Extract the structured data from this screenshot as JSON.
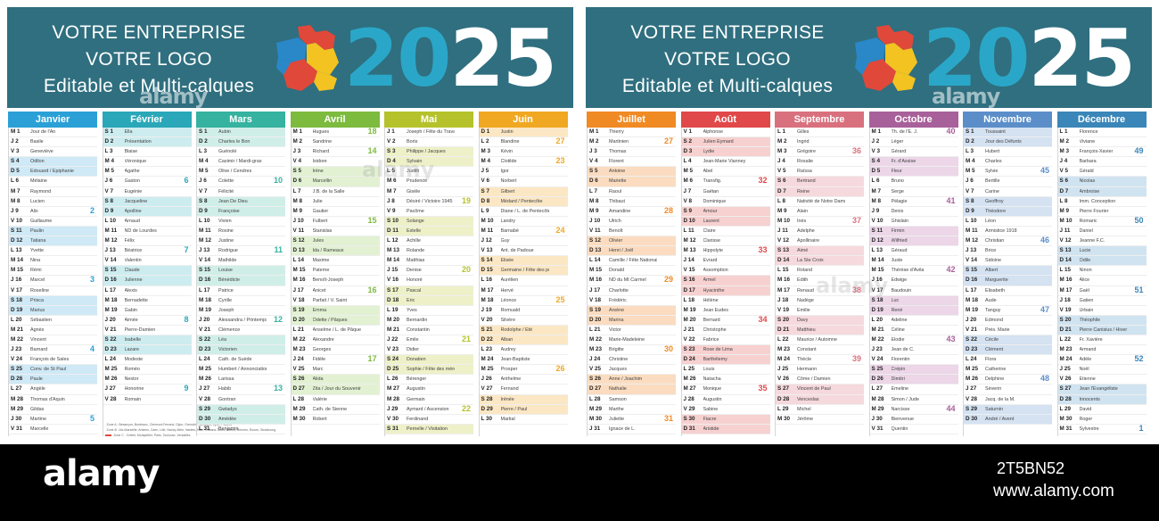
{
  "banner": {
    "line1": "VOTRE ENTREPRISE",
    "line2": "VOTRE LOGO",
    "line3": "Editable et Multi-calques",
    "year_part1": "20",
    "year_part2": "25"
  },
  "colors": {
    "banner_bg": "#2f6f7f",
    "year_accent": "#2aa7c8",
    "weekend_tint_saturday": "#dfeef2",
    "weekend_tint_sunday": "#c9e4ec"
  },
  "months": [
    {
      "name": "Janvier",
      "color": "#2aa0d6",
      "light": "#cfe9f6",
      "first": 2,
      "days": 31,
      "saints": [
        "Jour de l'An",
        "Basile",
        "Geneviève",
        "Odilon",
        "Edouard / Epiphanie",
        "Mélaine",
        "Raymond",
        "Lucien",
        "Alix",
        "Guillaume",
        "Paulin",
        "Tatiana",
        "Yvette",
        "Nina",
        "Rémi",
        "Marcel",
        "Roseline",
        "Prisca",
        "Marius",
        "Sébastien",
        "Agnès",
        "Vincent",
        "Barnard",
        "François de Sales",
        "Conv. de St Paul",
        "Paule",
        "Angèle",
        "Thomas d'Aquin",
        "Gildas",
        "Martine",
        "Marcelle"
      ],
      "weeks": {
        "9": "2",
        "16": "3",
        "23": "4",
        "30": "5"
      }
    },
    {
      "name": "Février",
      "color": "#2aa7b8",
      "light": "#cdecef",
      "first": 5,
      "days": 28,
      "saints": [
        "Ella",
        "Présentation",
        "Blaise",
        "Véronique",
        "Agathe",
        "Gaston",
        "Eugénie",
        "Jacqueline",
        "Apolline",
        "Arnaud",
        "ND de Lourdes",
        "Félix",
        "Béatrice",
        "Valentin",
        "Claude",
        "Julienne",
        "Alexis",
        "Bernadette",
        "Gabin",
        "Aimée",
        "Pierre-Damien",
        "Isabelle",
        "Lazare",
        "Modeste",
        "Roméo",
        "Nestor",
        "Honorine",
        "Romain"
      ],
      "weeks": {
        "6": "6",
        "13": "7",
        "20": "8",
        "27": "9"
      }
    },
    {
      "name": "Mars",
      "color": "#35b2a0",
      "light": "#d0eee8",
      "first": 5,
      "days": 31,
      "saints": [
        "Aubin",
        "Charles le Bon",
        "Guénolé",
        "Casimir / Mardi-gras",
        "Olive / Cendres",
        "Colette",
        "Félicité",
        "Jean De Dieu",
        "Françoise",
        "Vivien",
        "Rosine",
        "Justine",
        "Rodrigue",
        "Mathilde",
        "Louise",
        "Bénédicte",
        "Patrice",
        "Cyrille",
        "Joseph",
        "Alessandra / Printemps",
        "Clémence",
        "Léa",
        "Victorien",
        "Cath. de Suède",
        "Humbert / Annonciation",
        "Larissa",
        "Habib",
        "Gontran",
        "Gwladys",
        "Amédée",
        "Benjamin"
      ],
      "weeks": {
        "6": "10",
        "13": "11",
        "20": "12",
        "27": "13"
      }
    },
    {
      "name": "Avril",
      "color": "#7cbb3e",
      "light": "#e2f1d2",
      "first": 1,
      "days": 30,
      "saints": [
        "Hugues",
        "Sandrine",
        "Richard",
        "Isidore",
        "Irène",
        "Marcellin",
        "J.B. de la Salle",
        "Julie",
        "Gautier",
        "Fulbert",
        "Stanislas",
        "Jules",
        "Ida / Rameaux",
        "Maxime",
        "Paterne",
        "Benoît-Joseph",
        "Anicet",
        "Parfait / V. Saint",
        "Emma",
        "Odette / Pâques",
        "Anselme / L. de Pâques",
        "Alexandre",
        "Georges",
        "Fidèle",
        "Marc",
        "Alida",
        "Zita / Jour du Souvenir",
        "Valérie",
        "Cath. de Sienne",
        "Robert"
      ],
      "weeks": {
        "3": "14",
        "10": "15",
        "17": "16",
        "24": "17",
        "1": "18"
      }
    },
    {
      "name": "Mai",
      "color": "#b5c22b",
      "light": "#eef1c8",
      "first": 3,
      "days": 31,
      "saints": [
        "Joseph / Fête du Travail",
        "Boris",
        "Philippe / Jacques",
        "Sylvain",
        "Judith",
        "Prudence",
        "Gisèle",
        "Désiré / Victoire 1945",
        "Pacôme",
        "Solange",
        "Estelle",
        "Achille",
        "Rolande",
        "Matthias",
        "Denise",
        "Honoré",
        "Pascal",
        "Eric",
        "Yves",
        "Bernardin",
        "Constantin",
        "Emile",
        "Didier",
        "Donatien",
        "Sophie / Fête des mères",
        "Bérenger",
        "Augustin",
        "Germain",
        "Aymard / Ascension",
        "Ferdinand",
        "Pernelle / Visitation"
      ],
      "weeks": {
        "8": "19",
        "15": "20",
        "22": "21",
        "29": "22"
      }
    },
    {
      "name": "Juin",
      "color": "#f0a822",
      "light": "#fbe7c4",
      "first": 6,
      "days": 30,
      "saints": [
        "Justin",
        "Blandine",
        "Kévin",
        "Clotilde",
        "Igor",
        "Norbert",
        "Gilbert",
        "Médard / Pentecôte",
        "Diane / L. de Pentecôte",
        "Landry",
        "Barnabé",
        "Guy",
        "Ant. de Padoue",
        "Elisée",
        "Germaine / Fête des pères",
        "Aurélien",
        "Hervé",
        "Léonce",
        "Romuald",
        "Silvère",
        "Rodolphe / Eté",
        "Alban",
        "Audrey",
        "Jean-Baptiste",
        "Prosper",
        "Anthelme",
        "Fernand",
        "Irénée",
        "Pierre / Paul",
        "Martial"
      ],
      "weeks": {
        "4": "23",
        "11": "24",
        "18": "25",
        "25": "26",
        "2": "27"
      }
    },
    {
      "name": "Juillet",
      "color": "#f08a24",
      "light": "#fbdcc0",
      "first": 1,
      "days": 31,
      "saints": [
        "Thierry",
        "Martinien",
        "Thomas",
        "Florent",
        "Antoine",
        "Mariette",
        "Raoul",
        "Thibaut",
        "Amandine",
        "Ulrich",
        "Benoît",
        "Olivier",
        "Henri / Joël",
        "Camille / Fête Nationale",
        "Donald",
        "ND du Mt Carmel",
        "Charlotte",
        "Frédéric",
        "Arsène",
        "Marina",
        "Victor",
        "Marie-Madeleine",
        "Brigitte",
        "Christine",
        "Jacques",
        "Anne / Joachim",
        "Nathalie",
        "Samson",
        "Marthe",
        "Juliette",
        "Ignace de L."
      ],
      "weeks": {
        "2": "27",
        "9": "28",
        "16": "29",
        "23": "30",
        "30": "31"
      }
    },
    {
      "name": "Août",
      "color": "#e0484a",
      "light": "#f7d0d0",
      "first": 4,
      "days": 31,
      "saints": [
        "Alphonse",
        "Julien Eymard",
        "Lydie",
        "Jean-Marie Vianney",
        "Abel",
        "Transfig.",
        "Gaétan",
        "Dominique",
        "Amour",
        "Laurent",
        "Claire",
        "Clarisse",
        "Hippolyte",
        "Evrard",
        "Assomption",
        "Armel",
        "Hyacinthe",
        "Hélène",
        "Jean Eudes",
        "Bernard",
        "Christophe",
        "Fabrice",
        "Rose de Lima",
        "Barthélemy",
        "Louis",
        "Natacha",
        "Monique",
        "Augustin",
        "Sabine",
        "Fiacre",
        "Aristide"
      ],
      "weeks": {
        "6": "32",
        "13": "33",
        "20": "34",
        "27": "35"
      }
    },
    {
      "name": "Septembre",
      "color": "#d8707e",
      "light": "#f6d9dd",
      "first": 0,
      "days": 30,
      "saints": [
        "Gilles",
        "Ingrid",
        "Grégoire",
        "Rosalie",
        "Raïssa",
        "Bertrand",
        "Reine",
        "Nativité de Notre Dame",
        "Alain",
        "Inès",
        "Adelphe",
        "Apollinaire",
        "Aimé",
        "La Ste Croix",
        "Roland",
        "Edith",
        "Renaud",
        "Nadège",
        "Emilie",
        "Davy",
        "Matthieu",
        "Maurice / Automne",
        "Constant",
        "Thècle",
        "Hermann",
        "Côme / Damien",
        "Vincent de Paul",
        "Venceslas",
        "Michel",
        "Jérôme"
      ],
      "weeks": {
        "3": "36",
        "10": "37",
        "17": "38",
        "24": "39"
      }
    },
    {
      "name": "Octobre",
      "color": "#a8609a",
      "light": "#ecd6e8",
      "first": 2,
      "days": 31,
      "saints": [
        "Th. de l'E. J.",
        "Léger",
        "Gérard",
        "Fr. d'Assise",
        "Fleur",
        "Bruno",
        "Serge",
        "Pélagie",
        "Denis",
        "Ghislain",
        "Firmin",
        "Wilfried",
        "Géraud",
        "Juste",
        "Thérèse d'Avila",
        "Edwige",
        "Baudouin",
        "Luc",
        "René",
        "Adeline",
        "Céline",
        "Elodie",
        "Jean de C.",
        "Florentin",
        "Crépin",
        "Dimitri",
        "Emeline",
        "Simon / Jude",
        "Narcisse",
        "Bienvenue",
        "Quentin"
      ],
      "weeks": {
        "1": "40",
        "8": "41",
        "15": "42",
        "22": "43",
        "29": "44"
      }
    },
    {
      "name": "Novembre",
      "color": "#5b8ec9",
      "light": "#d4e2f2",
      "first": 5,
      "days": 30,
      "saints": [
        "Toussaint",
        "Jour des Défunts",
        "Hubert",
        "Charles",
        "Sylvie",
        "Bertille",
        "Carine",
        "Geoffroy",
        "Théodore",
        "Léon",
        "Armistice 1918",
        "Christian",
        "Brice",
        "Sidoine",
        "Albert",
        "Marguerite",
        "Elisabeth",
        "Aude",
        "Tanguy",
        "Edmond",
        "Prés. Marie",
        "Cécile",
        "Clément",
        "Flora",
        "Catherine",
        "Delphine",
        "Séverin",
        "Jacq. de la M.",
        "Saturnin",
        "André / Avent"
      ],
      "weeks": {
        "5": "45",
        "12": "46",
        "19": "47",
        "26": "48"
      }
    },
    {
      "name": "Décembre",
      "color": "#3a86b8",
      "light": "#d0e3f0",
      "first": 0,
      "days": 31,
      "saints": [
        "Florence",
        "Viviane",
        "François-Xavier",
        "Barbara",
        "Gérald",
        "Nicolas",
        "Ambroise",
        "Imm. Conception",
        "Pierre Fourier",
        "Romaric",
        "Daniel",
        "Jeanne F.C.",
        "Lucie",
        "Odile",
        "Ninon",
        "Alice",
        "Gaël",
        "Gatien",
        "Urbain",
        "Théophile",
        "Pierre Canisius / Hiver",
        "Fr. Xavière",
        "Armand",
        "Adèle",
        "Noël",
        "Etienne",
        "Jean l'Evangéliste",
        "Innocents",
        "David",
        "Roger",
        "Sylvestre"
      ],
      "weeks": {
        "3": "49",
        "10": "50",
        "17": "51",
        "24": "52",
        "31": "1"
      }
    }
  ],
  "weekday_letters": [
    "L",
    "M",
    "M",
    "J",
    "V",
    "S",
    "D"
  ],
  "legend": [
    "Zone A : Besançon, Bordeaux, Clermont-Ferrand, Dijon, Grenoble, Limoges, Lyon, Poitiers",
    "Zone B : Aix-Marseille, Amiens, Caen, Lille, Nancy-Metz, Nantes, Nice, Orléans-Tours, Reims, Rennes, Rouen, Strasbourg",
    "Zone C : Créteil, Montpellier, Paris, Toulouse, Versailles"
  ],
  "watermark": "alamy",
  "footer": {
    "logo": "alamy",
    "image_id": "2T5BN52",
    "url": "www.alamy.com"
  }
}
